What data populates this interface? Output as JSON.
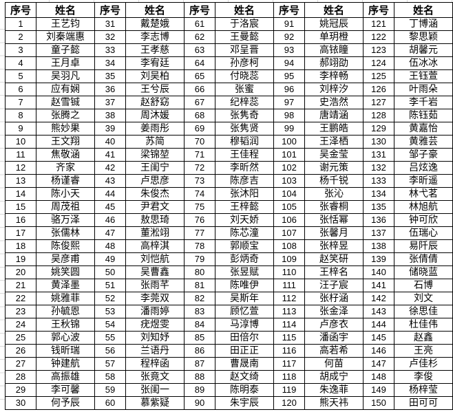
{
  "table": {
    "header": {
      "index_label": "序号",
      "name_label": "姓名"
    },
    "groups": [
      {
        "entries": [
          {
            "no": "1",
            "name": "王艺钧"
          },
          {
            "no": "2",
            "name": "刘秦端惠"
          },
          {
            "no": "3",
            "name": "童子懿"
          },
          {
            "no": "4",
            "name": "王月卓"
          },
          {
            "no": "5",
            "name": "吴羽凡"
          },
          {
            "no": "6",
            "name": "应有娴"
          },
          {
            "no": "7",
            "name": "赵雪铖"
          },
          {
            "no": "8",
            "name": "张腾之"
          },
          {
            "no": "9",
            "name": "熊妙果"
          },
          {
            "no": "10",
            "name": "王文翔"
          },
          {
            "no": "11",
            "name": "焦敬涵"
          },
          {
            "no": "12",
            "name": "齐家"
          },
          {
            "no": "13",
            "name": "杨谨睿"
          },
          {
            "no": "14",
            "name": "陈小天"
          },
          {
            "no": "15",
            "name": "周茂祖"
          },
          {
            "no": "16",
            "name": "骆万泽"
          },
          {
            "no": "17",
            "name": "张儒林"
          },
          {
            "no": "18",
            "name": "陈俊熙"
          },
          {
            "no": "19",
            "name": "吴彦甫"
          },
          {
            "no": "20",
            "name": "姚笑圆"
          },
          {
            "no": "21",
            "name": "黄泽墨"
          },
          {
            "no": "22",
            "name": "姚雅菲"
          },
          {
            "no": "23",
            "name": "孙毓恩"
          },
          {
            "no": "24",
            "name": "王秋锦"
          },
          {
            "no": "25",
            "name": "郭心波"
          },
          {
            "no": "26",
            "name": "钱昕瑞"
          },
          {
            "no": "27",
            "name": "钟建航"
          },
          {
            "no": "28",
            "name": "高振雄"
          },
          {
            "no": "29",
            "name": "李可馨"
          },
          {
            "no": "30",
            "name": "何予辰"
          }
        ]
      },
      {
        "entries": [
          {
            "no": "31",
            "name": "戴楚娥"
          },
          {
            "no": "32",
            "name": "李志博"
          },
          {
            "no": "33",
            "name": "王孝慈"
          },
          {
            "no": "34",
            "name": "李宥廷"
          },
          {
            "no": "35",
            "name": "刘吴柏"
          },
          {
            "no": "36",
            "name": "王兮辰"
          },
          {
            "no": "37",
            "name": "赵舒窈"
          },
          {
            "no": "38",
            "name": "周沐媛"
          },
          {
            "no": "39",
            "name": "姜雨彤"
          },
          {
            "no": "40",
            "name": "苏简"
          },
          {
            "no": "41",
            "name": "梁锦堃"
          },
          {
            "no": "42",
            "name": "王闺宁"
          },
          {
            "no": "43",
            "name": "卢思彦"
          },
          {
            "no": "44",
            "name": "朱俊杰"
          },
          {
            "no": "45",
            "name": "尹君文"
          },
          {
            "no": "46",
            "name": "敖思琦"
          },
          {
            "no": "47",
            "name": "董淞翊"
          },
          {
            "no": "48",
            "name": "高梓淇"
          },
          {
            "no": "49",
            "name": "刘恺航"
          },
          {
            "no": "50",
            "name": "吴曹鑫"
          },
          {
            "no": "51",
            "name": "张雨芊"
          },
          {
            "no": "52",
            "name": "李莞双"
          },
          {
            "no": "53",
            "name": "潘雨婷"
          },
          {
            "no": "54",
            "name": "疣煜雯"
          },
          {
            "no": "55",
            "name": "刘知妤"
          },
          {
            "no": "56",
            "name": "兰语丹"
          },
          {
            "no": "57",
            "name": "程梓函"
          },
          {
            "no": "58",
            "name": "张竟文"
          },
          {
            "no": "59",
            "name": "张闺一"
          },
          {
            "no": "60",
            "name": "慕紫疑"
          }
        ]
      },
      {
        "entries": [
          {
            "no": "61",
            "name": "于洛宸"
          },
          {
            "no": "62",
            "name": "王曼懿"
          },
          {
            "no": "63",
            "name": "邓呈晋"
          },
          {
            "no": "64",
            "name": "孙彦柯"
          },
          {
            "no": "65",
            "name": "付晓蕊"
          },
          {
            "no": "66",
            "name": "张蜜"
          },
          {
            "no": "67",
            "name": "纪梓蕊"
          },
          {
            "no": "68",
            "name": "张隽奇"
          },
          {
            "no": "69",
            "name": "张隽贤"
          },
          {
            "no": "70",
            "name": "穆韬润"
          },
          {
            "no": "71",
            "name": "王佳程"
          },
          {
            "no": "72",
            "name": "李昕然"
          },
          {
            "no": "73",
            "name": "陈彦吉"
          },
          {
            "no": "74",
            "name": "张沐阳"
          },
          {
            "no": "75",
            "name": "王梓懿"
          },
          {
            "no": "76",
            "name": "刘天娇"
          },
          {
            "no": "77",
            "name": "陈芯潼"
          },
          {
            "no": "78",
            "name": "郭顺宝"
          },
          {
            "no": "79",
            "name": "彭炳奇"
          },
          {
            "no": "80",
            "name": "张昱赋"
          },
          {
            "no": "81",
            "name": "陈唯伊"
          },
          {
            "no": "82",
            "name": "吴斯年"
          },
          {
            "no": "83",
            "name": "顾忆萱"
          },
          {
            "no": "84",
            "name": "马淳博"
          },
          {
            "no": "85",
            "name": "田倍尔"
          },
          {
            "no": "86",
            "name": "田正正"
          },
          {
            "no": "87",
            "name": "曹晟南"
          },
          {
            "no": "88",
            "name": "赵文绮"
          },
          {
            "no": "89",
            "name": "陈明泰"
          },
          {
            "no": "90",
            "name": "朱宇辰"
          }
        ]
      },
      {
        "entries": [
          {
            "no": "91",
            "name": "姚冠辰"
          },
          {
            "no": "92",
            "name": "单玥橙"
          },
          {
            "no": "93",
            "name": "高铱瞳"
          },
          {
            "no": "94",
            "name": "郝翊劭"
          },
          {
            "no": "95",
            "name": "李梓畅"
          },
          {
            "no": "96",
            "name": "刘梓汐"
          },
          {
            "no": "97",
            "name": "史浩然"
          },
          {
            "no": "98",
            "name": "唐靖涵"
          },
          {
            "no": "99",
            "name": "王鹏皓"
          },
          {
            "no": "100",
            "name": "王泽栖"
          },
          {
            "no": "101",
            "name": "吴金莹"
          },
          {
            "no": "102",
            "name": "谢元策"
          },
          {
            "no": "103",
            "name": "杨千锐"
          },
          {
            "no": "104",
            "name": "张沁"
          },
          {
            "no": "105",
            "name": "张睿桐"
          },
          {
            "no": "106",
            "name": "张恬幂"
          },
          {
            "no": "107",
            "name": "张馨月"
          },
          {
            "no": "108",
            "name": "张梓昱"
          },
          {
            "no": "109",
            "name": "赵笑研"
          },
          {
            "no": "110",
            "name": "王梓名"
          },
          {
            "no": "111",
            "name": "汪子宸"
          },
          {
            "no": "112",
            "name": "张杍涵"
          },
          {
            "no": "113",
            "name": "张金泽"
          },
          {
            "no": "114",
            "name": "卢彦衣"
          },
          {
            "no": "115",
            "name": "潘函宇"
          },
          {
            "no": "116",
            "name": "高若希"
          },
          {
            "no": "117",
            "name": "何苗"
          },
          {
            "no": "118",
            "name": "胡成宁"
          },
          {
            "no": "119",
            "name": "朱逸菲"
          },
          {
            "no": "120",
            "name": "熊天祎"
          }
        ]
      },
      {
        "entries": [
          {
            "no": "121",
            "name": "丁博涵"
          },
          {
            "no": "122",
            "name": "黎思颖"
          },
          {
            "no": "123",
            "name": "胡馨元"
          },
          {
            "no": "124",
            "name": "伍冰冰"
          },
          {
            "no": "125",
            "name": "王钰萱"
          },
          {
            "no": "126",
            "name": "叶雨朵"
          },
          {
            "no": "127",
            "name": "李千岩"
          },
          {
            "no": "128",
            "name": "陈钰茹"
          },
          {
            "no": "129",
            "name": "黄嘉怡"
          },
          {
            "no": "130",
            "name": "黄雅芸"
          },
          {
            "no": "131",
            "name": "邹子豪"
          },
          {
            "no": "132",
            "name": "吕炫逸"
          },
          {
            "no": "133",
            "name": "李昕遥"
          },
          {
            "no": "134",
            "name": "林弋茗"
          },
          {
            "no": "135",
            "name": "林旭航"
          },
          {
            "no": "136",
            "name": "钟可欣"
          },
          {
            "no": "137",
            "name": "伍瑞心"
          },
          {
            "no": "138",
            "name": "易阡辰"
          },
          {
            "no": "139",
            "name": "张倩倩"
          },
          {
            "no": "140",
            "name": "储晓蓝"
          },
          {
            "no": "141",
            "name": "石博"
          },
          {
            "no": "142",
            "name": "刘文"
          },
          {
            "no": "143",
            "name": "徐思佳"
          },
          {
            "no": "144",
            "name": "杜佳伟"
          },
          {
            "no": "145",
            "name": "赵鑫"
          },
          {
            "no": "146",
            "name": "王亮"
          },
          {
            "no": "147",
            "name": "卢佳杉"
          },
          {
            "no": "148",
            "name": "李俊"
          },
          {
            "no": "149",
            "name": "杨梓莹"
          },
          {
            "no": "150",
            "name": "田可可"
          }
        ]
      }
    ]
  }
}
